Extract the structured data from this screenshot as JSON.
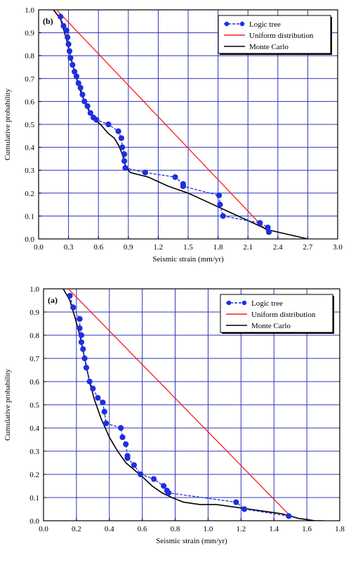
{
  "colors": {
    "grid": "#2f34b8",
    "logic_tree": "#1f2fe0",
    "uniform": "#ff1a1a",
    "monte_carlo": "#000000",
    "axis": "#000000"
  },
  "chart_data": [
    {
      "type": "line",
      "panel_label": "(b)",
      "xlabel": "Seismic strain (mm/yr)",
      "ylabel": "Cumulative probability",
      "xlim": [
        0.0,
        3.0
      ],
      "ylim": [
        0.0,
        1.0
      ],
      "xticks": [
        "0.0",
        "0.3",
        "0.6",
        "0.9",
        "1.2",
        "1.5",
        "1.8",
        "2.1",
        "2.4",
        "2.7",
        "3.0"
      ],
      "yticks": [
        "0.0",
        "0.1",
        "0.2",
        "0.3",
        "0.4",
        "0.5",
        "0.6",
        "0.7",
        "0.8",
        "0.9",
        "1.0"
      ],
      "grid": true,
      "legend_position": "top-right",
      "legend": [
        "Logic tree",
        "Uniform distribution",
        "Monte Carlo"
      ],
      "series": [
        {
          "name": "Logic tree",
          "style": "dashed-markers",
          "x": [
            0.22,
            0.25,
            0.28,
            0.29,
            0.3,
            0.31,
            0.32,
            0.34,
            0.36,
            0.38,
            0.4,
            0.42,
            0.44,
            0.46,
            0.49,
            0.52,
            0.55,
            0.58,
            0.7,
            0.8,
            0.83,
            0.84,
            0.86,
            0.86,
            0.87,
            1.07,
            1.37,
            1.45,
            1.45,
            1.81,
            1.82,
            1.85,
            2.22,
            2.3,
            2.31
          ],
          "y": [
            0.97,
            0.93,
            0.91,
            0.88,
            0.85,
            0.82,
            0.79,
            0.76,
            0.73,
            0.71,
            0.68,
            0.66,
            0.63,
            0.6,
            0.58,
            0.55,
            0.53,
            0.52,
            0.5,
            0.47,
            0.44,
            0.4,
            0.37,
            0.34,
            0.31,
            0.29,
            0.27,
            0.24,
            0.23,
            0.19,
            0.15,
            0.1,
            0.07,
            0.05,
            0.03
          ]
        },
        {
          "name": "Uniform distribution",
          "style": "solid",
          "x": [
            0.18,
            2.3
          ],
          "y": [
            1.0,
            0.03
          ]
        },
        {
          "name": "Monte Carlo",
          "style": "solid",
          "x": [
            0.15,
            0.22,
            0.28,
            0.33,
            0.38,
            0.43,
            0.48,
            0.54,
            0.62,
            0.7,
            0.76,
            0.8,
            0.84,
            0.87,
            0.92,
            1.1,
            1.3,
            1.5,
            1.7,
            1.9,
            2.1,
            2.3,
            2.5,
            2.7
          ],
          "y": [
            1.0,
            0.96,
            0.87,
            0.78,
            0.7,
            0.63,
            0.58,
            0.53,
            0.5,
            0.46,
            0.44,
            0.41,
            0.37,
            0.32,
            0.29,
            0.27,
            0.23,
            0.2,
            0.16,
            0.12,
            0.08,
            0.04,
            0.02,
            0.0
          ]
        }
      ]
    },
    {
      "type": "line",
      "panel_label": "(a)",
      "xlabel": "Seismic strain (mm/yr)",
      "ylabel": "Cumulative probability",
      "xlim": [
        0.0,
        1.8
      ],
      "ylim": [
        0.0,
        1.0
      ],
      "xticks": [
        "0.0",
        "0.2",
        "0.4",
        "0.6",
        "0.8",
        "1.0",
        "1.2",
        "1.4",
        "1.6",
        "1.8"
      ],
      "yticks": [
        "0.0",
        "0.1",
        "0.2",
        "0.3",
        "0.4",
        "0.5",
        "0.6",
        "0.7",
        "0.8",
        "0.9",
        "1.0"
      ],
      "grid": true,
      "legend_position": "top-right",
      "legend": [
        "Logic tree",
        "Uniform distribution",
        "Monte Carlo"
      ],
      "series": [
        {
          "name": "Logic tree",
          "style": "dashed-markers",
          "x": [
            0.16,
            0.18,
            0.22,
            0.22,
            0.23,
            0.23,
            0.24,
            0.25,
            0.26,
            0.28,
            0.3,
            0.33,
            0.36,
            0.37,
            0.38,
            0.47,
            0.48,
            0.5,
            0.51,
            0.51,
            0.55,
            0.59,
            0.67,
            0.73,
            0.75,
            0.76,
            1.17,
            1.22,
            1.49
          ],
          "y": [
            0.97,
            0.92,
            0.87,
            0.83,
            0.8,
            0.77,
            0.74,
            0.7,
            0.66,
            0.6,
            0.57,
            0.53,
            0.51,
            0.47,
            0.42,
            0.4,
            0.36,
            0.33,
            0.28,
            0.27,
            0.24,
            0.2,
            0.18,
            0.15,
            0.13,
            0.12,
            0.08,
            0.05,
            0.02
          ]
        },
        {
          "name": "Uniform distribution",
          "style": "solid",
          "x": [
            0.15,
            1.5
          ],
          "y": [
            1.0,
            0.02
          ]
        },
        {
          "name": "Monte Carlo",
          "style": "solid",
          "x": [
            0.12,
            0.16,
            0.19,
            0.22,
            0.25,
            0.28,
            0.31,
            0.35,
            0.4,
            0.45,
            0.5,
            0.55,
            0.6,
            0.66,
            0.72,
            0.78,
            0.85,
            0.95,
            1.05,
            1.15,
            1.25,
            1.35,
            1.45,
            1.55,
            1.65,
            1.7
          ],
          "y": [
            1.0,
            0.95,
            0.88,
            0.8,
            0.7,
            0.6,
            0.52,
            0.44,
            0.36,
            0.3,
            0.25,
            0.22,
            0.19,
            0.15,
            0.12,
            0.1,
            0.08,
            0.07,
            0.07,
            0.06,
            0.05,
            0.04,
            0.03,
            0.01,
            0.0,
            0.0
          ]
        }
      ]
    }
  ]
}
